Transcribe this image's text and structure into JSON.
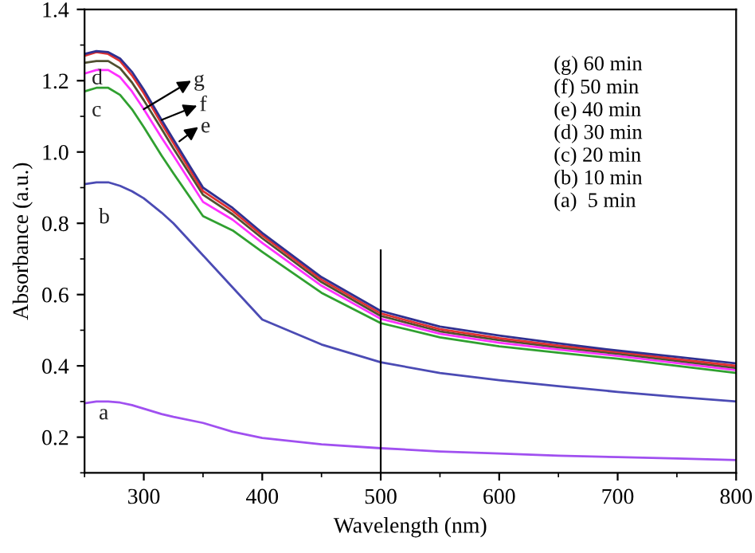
{
  "chart_data": {
    "type": "line",
    "xlabel": "Wavelength (nm)",
    "ylabel": "Absorbance (a.u.)",
    "x": [
      250,
      260,
      270,
      280,
      290,
      300,
      315,
      325,
      350,
      375,
      400,
      450,
      500,
      550,
      600,
      650,
      700,
      750,
      800
    ],
    "series": [
      {
        "name": "a",
        "color": "#a050f0",
        "values": [
          0.295,
          0.3,
          0.3,
          0.297,
          0.29,
          0.28,
          0.265,
          0.257,
          0.24,
          0.215,
          0.198,
          0.18,
          0.169,
          0.16,
          0.154,
          0.148,
          0.144,
          0.14,
          0.136
        ]
      },
      {
        "name": "b",
        "color": "#4b4bb4",
        "values": [
          0.91,
          0.915,
          0.915,
          0.905,
          0.89,
          0.87,
          0.83,
          0.8,
          0.71,
          0.62,
          0.53,
          0.46,
          0.41,
          0.38,
          0.36,
          0.343,
          0.327,
          0.313,
          0.3
        ]
      },
      {
        "name": "c",
        "color": "#30a030",
        "values": [
          1.17,
          1.18,
          1.18,
          1.16,
          1.12,
          1.07,
          0.99,
          0.94,
          0.82,
          0.78,
          0.72,
          0.605,
          0.52,
          0.48,
          0.455,
          0.437,
          0.42,
          0.4,
          0.38
        ]
      },
      {
        "name": "d",
        "color": "#ff30ff",
        "values": [
          1.22,
          1.23,
          1.23,
          1.21,
          1.17,
          1.12,
          1.04,
          0.99,
          0.86,
          0.81,
          0.745,
          0.625,
          0.532,
          0.49,
          0.465,
          0.446,
          0.428,
          0.408,
          0.388
        ]
      },
      {
        "name": "e",
        "color": "#505030",
        "values": [
          1.25,
          1.255,
          1.255,
          1.235,
          1.195,
          1.145,
          1.065,
          1.01,
          0.88,
          0.825,
          0.758,
          0.635,
          0.54,
          0.497,
          0.472,
          0.452,
          0.434,
          0.414,
          0.394
        ]
      },
      {
        "name": "f",
        "color": "#e03030",
        "values": [
          1.27,
          1.28,
          1.275,
          1.255,
          1.215,
          1.165,
          1.08,
          1.025,
          0.89,
          0.835,
          0.766,
          0.642,
          0.547,
          0.503,
          0.478,
          0.457,
          0.439,
          0.419,
          0.4
        ]
      },
      {
        "name": "g",
        "color": "#303090",
        "values": [
          1.275,
          1.283,
          1.28,
          1.262,
          1.225,
          1.175,
          1.09,
          1.035,
          0.9,
          0.843,
          0.773,
          0.649,
          0.554,
          0.51,
          0.485,
          0.463,
          0.443,
          0.425,
          0.407
        ]
      }
    ],
    "xlim": [
      250,
      800
    ],
    "xticks": [
      300,
      400,
      500,
      600,
      700,
      800
    ],
    "ylim": [
      0.1,
      1.4
    ],
    "yticks": [
      {
        "value": 0.2,
        "label": "0.2"
      },
      {
        "value": 0.4,
        "label": "0.4"
      },
      {
        "value": 0.6,
        "label": "0.6"
      },
      {
        "value": 0.8,
        "label": "0.8"
      },
      {
        "value": 1.0,
        "label": "1.0"
      },
      {
        "value": 1.2,
        "label": "1.2"
      },
      {
        "value": 1.4,
        "label": "1.4"
      }
    ],
    "ref_lines": [
      {
        "axis": "x",
        "value": 500,
        "color": "#000000"
      }
    ],
    "annotations": [
      "(g) 60 min\n(f) 50 min\n(e) 40 min\n(d) 30 min\n(c) 20 min\n(b) 10 min\n(a)  5 min"
    ],
    "grid": false,
    "legend": false,
    "marker": "none",
    "line_style": "solid"
  }
}
